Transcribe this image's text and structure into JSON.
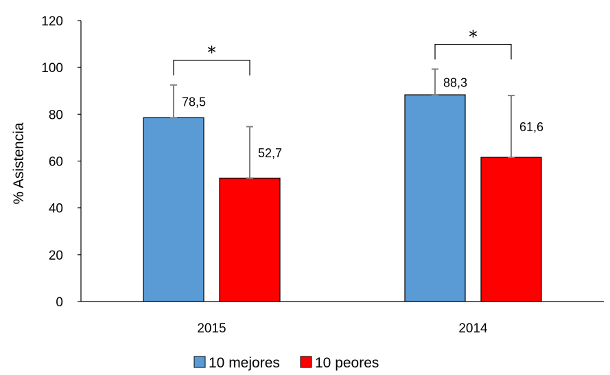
{
  "chart_data": {
    "type": "bar",
    "title": "",
    "xlabel": "",
    "ylabel": "% Asistencia",
    "ylim": [
      0,
      120
    ],
    "yticks": [
      0,
      20,
      40,
      60,
      80,
      100,
      120
    ],
    "categories": [
      "2015",
      "2014"
    ],
    "series": [
      {
        "name": "10 mejores",
        "color": "#5B9BD5",
        "values": [
          78.5,
          88.3
        ],
        "value_labels": [
          "78,5",
          "88,3"
        ],
        "error_upper": [
          92.5,
          99.3
        ]
      },
      {
        "name": "10 peores",
        "color": "#FF0000",
        "values": [
          52.7,
          61.6
        ],
        "value_labels": [
          "52,7",
          "61,6"
        ],
        "error_upper": [
          74.7,
          88.0
        ]
      }
    ],
    "significance": [
      {
        "category": "2015",
        "marker": "*"
      },
      {
        "category": "2014",
        "marker": "*"
      }
    ],
    "legend": {
      "position": "bottom",
      "entries": [
        "10 mejores",
        "10 peores"
      ]
    },
    "grid": false
  }
}
